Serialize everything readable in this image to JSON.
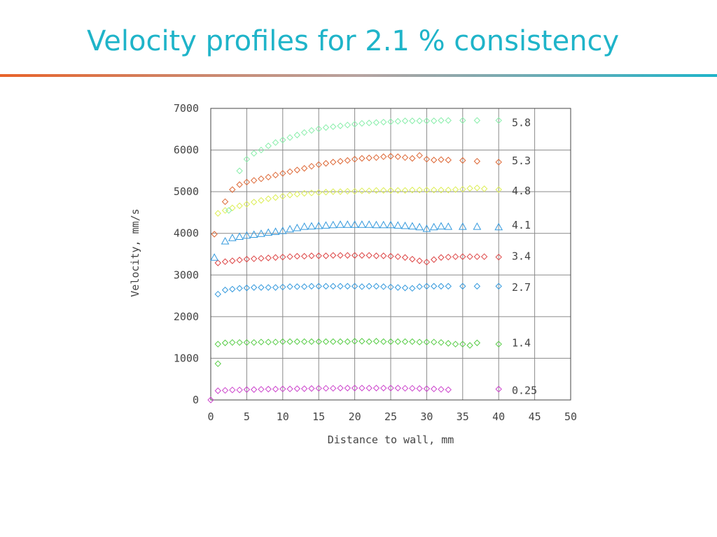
{
  "slide": {
    "title": "Velocity profiles for 2.1 % consistency",
    "title_color": "#1fb4c9",
    "rule_gradient": [
      "#e8632a",
      "#b7a3a0",
      "#1fb4c9"
    ]
  },
  "chart_data": {
    "type": "scatter",
    "title": "",
    "xlabel": "Distance to wall, mm",
    "ylabel": "Velocity, mm/s",
    "xlim": [
      0,
      50
    ],
    "ylim": [
      0,
      7000
    ],
    "xticks": [
      0,
      5,
      10,
      15,
      20,
      25,
      30,
      35,
      40,
      45,
      50
    ],
    "yticks": [
      0,
      1000,
      2000,
      3000,
      4000,
      5000,
      6000,
      7000
    ],
    "grid": true,
    "legend": "right-inline",
    "series": [
      {
        "name": "0.25",
        "label_y": 230,
        "color": "#cc44cc",
        "marker": "diamond",
        "x": [
          0,
          1,
          2,
          3,
          4,
          5,
          6,
          7,
          8,
          9,
          10,
          11,
          12,
          13,
          14,
          15,
          16,
          17,
          18,
          19,
          20,
          21,
          22,
          23,
          24,
          25,
          26,
          27,
          28,
          29,
          30,
          31,
          32,
          33,
          40
        ],
        "y": [
          0,
          220,
          230,
          240,
          240,
          250,
          250,
          255,
          260,
          260,
          265,
          265,
          270,
          270,
          275,
          280,
          280,
          280,
          285,
          285,
          285,
          285,
          285,
          285,
          285,
          285,
          285,
          280,
          280,
          275,
          270,
          265,
          255,
          245,
          260
        ]
      },
      {
        "name": "1.4",
        "label_y": 1370,
        "color": "#55cc44",
        "marker": "diamond",
        "x": [
          1,
          1,
          2,
          3,
          4,
          5,
          6,
          7,
          8,
          9,
          10,
          11,
          12,
          13,
          14,
          15,
          16,
          17,
          18,
          19,
          20,
          21,
          22,
          23,
          24,
          25,
          26,
          27,
          28,
          29,
          30,
          31,
          32,
          33,
          34,
          35,
          36,
          37,
          40
        ],
        "y": [
          870,
          1340,
          1370,
          1380,
          1380,
          1380,
          1380,
          1390,
          1390,
          1390,
          1400,
          1400,
          1400,
          1400,
          1400,
          1400,
          1400,
          1400,
          1400,
          1400,
          1410,
          1410,
          1400,
          1410,
          1400,
          1400,
          1400,
          1400,
          1400,
          1390,
          1390,
          1390,
          1380,
          1360,
          1340,
          1340,
          1310,
          1370,
          1340
        ]
      },
      {
        "name": "2.7",
        "label_y": 2700,
        "color": "#3399dd",
        "marker": "diamond",
        "x": [
          1,
          2,
          3,
          4,
          5,
          6,
          7,
          8,
          9,
          10,
          11,
          12,
          13,
          14,
          15,
          16,
          17,
          18,
          19,
          20,
          21,
          22,
          23,
          24,
          25,
          26,
          27,
          28,
          29,
          30,
          31,
          32,
          33,
          35,
          37,
          40
        ],
        "y": [
          2540,
          2640,
          2660,
          2680,
          2690,
          2700,
          2700,
          2700,
          2700,
          2710,
          2720,
          2720,
          2720,
          2730,
          2730,
          2730,
          2730,
          2730,
          2730,
          2730,
          2720,
          2730,
          2730,
          2720,
          2710,
          2700,
          2690,
          2680,
          2720,
          2730,
          2730,
          2730,
          2730,
          2730,
          2730,
          2730
        ]
      },
      {
        "name": "3.4",
        "label_y": 3450,
        "color": "#dd4444",
        "marker": "diamond",
        "x": [
          1,
          2,
          3,
          4,
          5,
          6,
          7,
          8,
          9,
          10,
          11,
          12,
          13,
          14,
          15,
          16,
          17,
          18,
          19,
          20,
          21,
          22,
          23,
          24,
          25,
          26,
          27,
          28,
          29,
          30,
          31,
          32,
          33,
          34,
          35,
          36,
          37,
          38,
          40
        ],
        "y": [
          3290,
          3320,
          3340,
          3360,
          3380,
          3390,
          3400,
          3410,
          3420,
          3430,
          3440,
          3450,
          3450,
          3460,
          3460,
          3460,
          3470,
          3470,
          3470,
          3470,
          3470,
          3470,
          3460,
          3460,
          3450,
          3440,
          3420,
          3380,
          3340,
          3310,
          3370,
          3420,
          3430,
          3440,
          3440,
          3440,
          3440,
          3440,
          3430
        ]
      },
      {
        "name": "4.1",
        "label_y": 4200,
        "color": "#3399dd",
        "marker": "triangle",
        "x": [
          0.5,
          2,
          3,
          4,
          5,
          6,
          7,
          8,
          9,
          10,
          11,
          12,
          13,
          14,
          15,
          16,
          17,
          18,
          19,
          20,
          21,
          22,
          23,
          24,
          25,
          26,
          27,
          28,
          29,
          30,
          31,
          32,
          33,
          35,
          37,
          40
        ],
        "y": [
          3420,
          3810,
          3890,
          3920,
          3950,
          3970,
          3990,
          4020,
          4040,
          4060,
          4100,
          4130,
          4160,
          4170,
          4180,
          4190,
          4200,
          4210,
          4210,
          4210,
          4210,
          4210,
          4200,
          4200,
          4200,
          4190,
          4180,
          4170,
          4150,
          4110,
          4150,
          4170,
          4160,
          4160,
          4160,
          4150
        ]
      },
      {
        "name": "4.8",
        "label_y": 5020,
        "color": "#ddee55",
        "marker": "diamond",
        "x": [
          1,
          2,
          3,
          4,
          5,
          6,
          7,
          8,
          9,
          10,
          11,
          12,
          13,
          14,
          15,
          16,
          17,
          18,
          19,
          20,
          21,
          22,
          23,
          24,
          25,
          26,
          27,
          28,
          29,
          30,
          31,
          32,
          33,
          34,
          35,
          36,
          37,
          38,
          40
        ],
        "y": [
          4480,
          4550,
          4610,
          4660,
          4700,
          4750,
          4790,
          4830,
          4860,
          4890,
          4920,
          4940,
          4960,
          4970,
          4980,
          4990,
          5000,
          5000,
          5010,
          5010,
          5020,
          5020,
          5030,
          5030,
          5030,
          5030,
          5030,
          5040,
          5040,
          5040,
          5040,
          5040,
          5040,
          5050,
          5060,
          5080,
          5090,
          5070,
          5050
        ]
      },
      {
        "name": "5.3",
        "label_y": 5740,
        "color": "#dd6633",
        "marker": "diamond",
        "x": [
          0.5,
          2,
          3,
          4,
          5,
          6,
          7,
          8,
          9,
          10,
          11,
          12,
          13,
          14,
          15,
          16,
          17,
          18,
          19,
          20,
          21,
          22,
          23,
          24,
          25,
          26,
          27,
          28,
          29,
          30,
          31,
          32,
          33,
          35,
          37,
          40
        ],
        "y": [
          3980,
          4760,
          5050,
          5170,
          5230,
          5270,
          5310,
          5350,
          5400,
          5440,
          5480,
          5520,
          5560,
          5610,
          5650,
          5680,
          5710,
          5730,
          5750,
          5780,
          5800,
          5810,
          5820,
          5840,
          5850,
          5840,
          5820,
          5800,
          5870,
          5780,
          5760,
          5770,
          5760,
          5750,
          5730,
          5710
        ]
      },
      {
        "name": "5.8",
        "label_y": 6660,
        "color": "#88eeaa",
        "marker": "diamond",
        "x": [
          2.5,
          4,
          5,
          6,
          7,
          8,
          9,
          10,
          11,
          12,
          13,
          14,
          15,
          16,
          17,
          18,
          19,
          20,
          21,
          22,
          23,
          24,
          25,
          26,
          27,
          28,
          29,
          30,
          31,
          32,
          33,
          35,
          37,
          40
        ],
        "y": [
          4550,
          5500,
          5780,
          5920,
          6000,
          6100,
          6180,
          6240,
          6300,
          6360,
          6420,
          6470,
          6510,
          6540,
          6560,
          6580,
          6600,
          6620,
          6640,
          6650,
          6660,
          6670,
          6680,
          6690,
          6700,
          6700,
          6700,
          6700,
          6700,
          6710,
          6710,
          6710,
          6710,
          6710
        ]
      }
    ]
  }
}
